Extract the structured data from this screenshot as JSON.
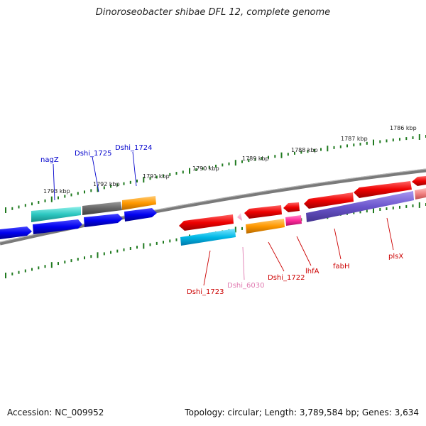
{
  "title": "Dinoroseobacter shibae DFL 12, complete genome",
  "accession": "Accession: NC_009952",
  "summary": "Topology: circular; Length: 3,789,584 bp; Genes: 3,634",
  "colors": {
    "backbone": "#7a7a7a",
    "tick": "#1f7a1f",
    "label_blue": "#0000cc",
    "label_red": "#cc0000",
    "label_pink": "#e07ab0"
  },
  "scale_labels": [
    "1793 kbp",
    "1792 kbp",
    "1791 kbp",
    "1790 kbp",
    "1789 kbp",
    "1788 kbp",
    "1787 kbp",
    "1786 kbp"
  ],
  "gene_labels": [
    {
      "text": "nagZ",
      "color": "blue"
    },
    {
      "text": "Dshi_1725",
      "color": "blue"
    },
    {
      "text": "Dshi_1724",
      "color": "blue"
    },
    {
      "text": "Dshi_1723",
      "color": "red"
    },
    {
      "text": "Dshi_6030",
      "color": "pink"
    },
    {
      "text": "Dshi_1722",
      "color": "red"
    },
    {
      "text": "lhfA",
      "color": "red"
    },
    {
      "text": "fabH",
      "color": "red"
    },
    {
      "text": "plsX",
      "color": "red"
    }
  ]
}
